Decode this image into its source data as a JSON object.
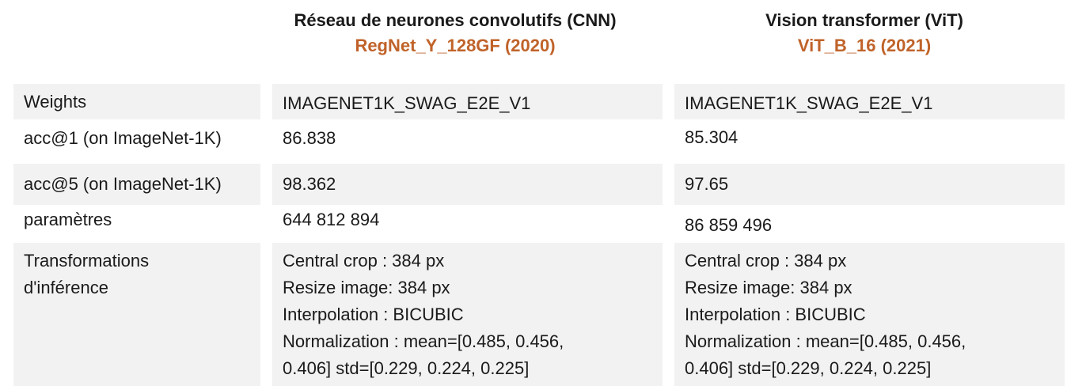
{
  "headers": {
    "cnn": {
      "title": "Réseau de neurones convolutifs (CNN)",
      "model": "RegNet_Y_128GF (2020)"
    },
    "vit": {
      "title": "Vision transformer (ViT)",
      "model": "ViT_B_16 (2021)"
    }
  },
  "rows": {
    "weights": {
      "label": "Weights",
      "cnn": "IMAGENET1K_SWAG_E2E_V1",
      "vit": "IMAGENET1K_SWAG_E2E_V1"
    },
    "acc1": {
      "label": "acc@1 (on ImageNet-1K)",
      "cnn": "86.838",
      "vit": "85.304"
    },
    "acc5": {
      "label": "acc@5 (on ImageNet-1K)",
      "cnn": "98.362",
      "vit": "97.65"
    },
    "params": {
      "label": "paramètres",
      "cnn": "644 812 894",
      "vit": "86 859 496"
    },
    "transforms": {
      "label": [
        "Transformations",
        "d'inférence"
      ],
      "cnn": [
        "Central crop : 384 px",
        "Resize image: 384 px",
        "Interpolation : BICUBIC",
        "Normalization : mean=[0.485, 0.456,",
        "0.406] std=[0.229, 0.224, 0.225]"
      ],
      "vit": [
        "Central crop : 384 px",
        "Resize image: 384 px",
        "Interpolation : BICUBIC",
        "Normalization : mean=[0.485, 0.456,",
        "0.406] std=[0.229, 0.224, 0.225]"
      ]
    }
  }
}
